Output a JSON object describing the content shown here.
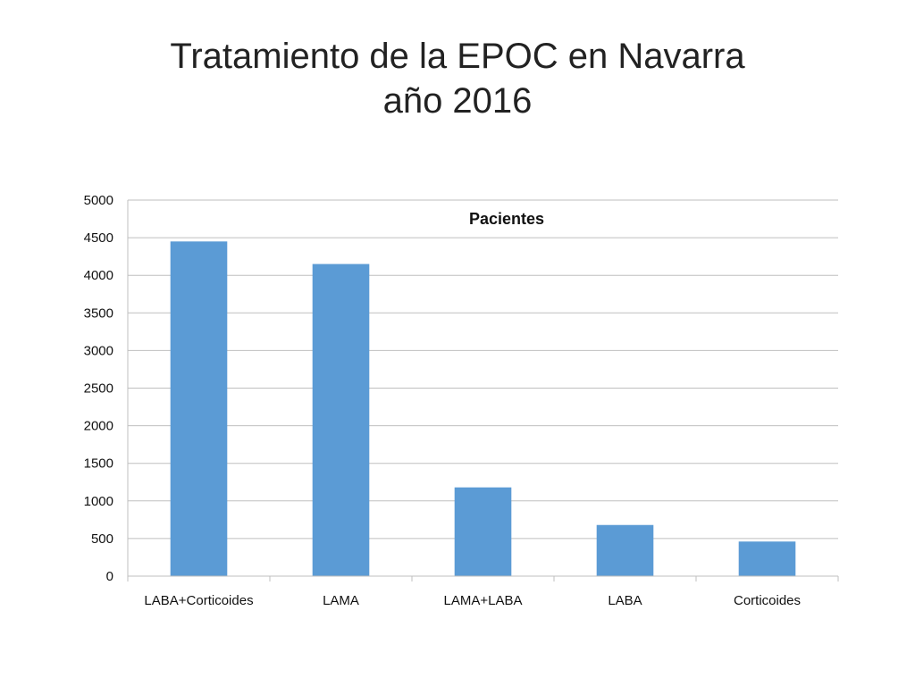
{
  "slide": {
    "title_line1": "Tratamiento de la EPOC en Navarra",
    "title_line2": "año 2016"
  },
  "chart_data": {
    "type": "bar",
    "title": "Pacientes",
    "categories": [
      "LABA+Corticoides",
      "LAMA",
      "LAMA+LABA",
      "LABA",
      "Corticoides"
    ],
    "values": [
      4450,
      4150,
      1180,
      680,
      460
    ],
    "xlabel": "",
    "ylabel": "",
    "ylim": [
      0,
      5000
    ],
    "yticks": [
      0,
      500,
      1000,
      1500,
      2000,
      2500,
      3000,
      3500,
      4000,
      4500,
      5000
    ],
    "grid": true,
    "legend": "none",
    "colors": {
      "bar": "#5B9BD5",
      "grid": "#BFBFBF",
      "axis": "#BFBFBF"
    }
  }
}
